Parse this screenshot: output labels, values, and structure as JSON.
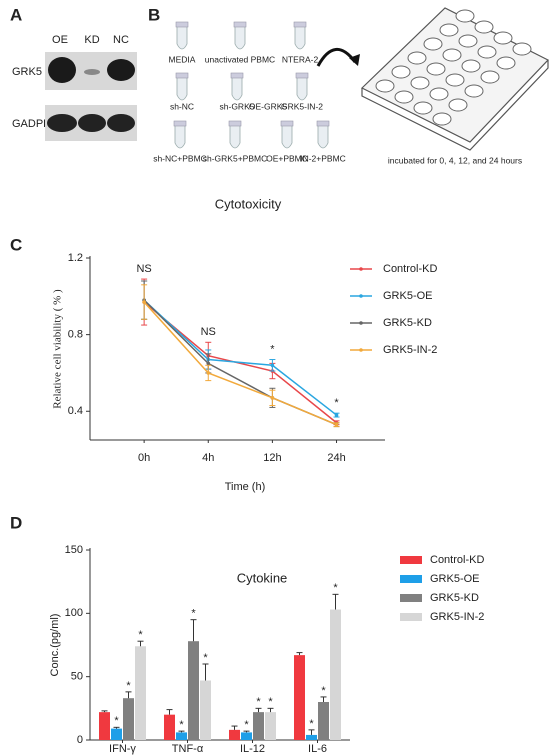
{
  "panel_a": {
    "letter": "A",
    "lanes": [
      "OE",
      "KD",
      "NC"
    ],
    "rows": [
      "GRK5",
      "GADPH"
    ]
  },
  "panel_b": {
    "letter": "B",
    "tubes": [
      [
        "MEDIA",
        "unactivated PBMC",
        "NTERA-2"
      ],
      [
        "sh-NC",
        "sh-GRK5",
        "OE-GRK5",
        "GRK5-IN-2"
      ],
      [
        "sh-NC+PBMC",
        "sh-GRK5+PBMC",
        "OE+PBMC",
        "IN-2+PBMC"
      ]
    ],
    "caption": "incubated for 0, 4, 12, and 24 hours"
  },
  "chart_data": [
    {
      "type": "line",
      "panel": "C",
      "title": "Cytotoxicity",
      "xlabel": "Time (h)",
      "ylabel": "Relative cell viability ( % )",
      "categories": [
        "0h",
        "4h",
        "12h",
        "24h"
      ],
      "annotations": [
        "NS",
        "NS",
        "*",
        "*"
      ],
      "ylim": [
        0.25,
        1.2
      ],
      "yticks": [
        0.4,
        0.8,
        1.2
      ],
      "grid": false,
      "legend": "right",
      "series": [
        {
          "name": "Control-KD",
          "color": "#e8474a",
          "values": [
            0.97,
            0.69,
            0.61,
            0.34
          ],
          "errors": [
            0.12,
            0.07,
            0.04,
            0.01
          ]
        },
        {
          "name": "GRK5-OE",
          "color": "#2aa6e0",
          "values": [
            0.98,
            0.67,
            0.64,
            0.38
          ],
          "errors": [
            0.1,
            0.05,
            0.03,
            0.01
          ]
        },
        {
          "name": "GRK5-KD",
          "color": "#666666",
          "values": [
            0.98,
            0.65,
            0.47,
            0.33
          ],
          "errors": [
            0.1,
            0.05,
            0.05,
            0.01
          ]
        },
        {
          "name": "GRK5-IN-2",
          "color": "#f2a93b",
          "values": [
            0.97,
            0.6,
            0.47,
            0.33
          ],
          "errors": [
            0.09,
            0.04,
            0.04,
            0.01
          ]
        }
      ]
    },
    {
      "type": "bar",
      "panel": "D",
      "title": "Cytokine",
      "ylabel": "Conc.(pg/ml)",
      "categories": [
        "IFN-γ",
        "TNF-α",
        "IL-12",
        "IL-6"
      ],
      "ylim": [
        0,
        150
      ],
      "yticks": [
        0,
        50,
        100,
        150
      ],
      "grid": false,
      "legend": "right",
      "series": [
        {
          "name": "Control-KD",
          "color": "#f0393f",
          "values": [
            22,
            20,
            8,
            67
          ],
          "errors": [
            1,
            4,
            3,
            2
          ]
        },
        {
          "name": "GRK5-OE",
          "color": "#1e9fe8",
          "values": [
            9,
            6,
            6,
            4
          ],
          "errors": [
            1,
            1,
            1,
            4
          ],
          "annotations": [
            "*",
            "*",
            "*",
            "*"
          ]
        },
        {
          "name": "GRK5-KD",
          "color": "#808080",
          "values": [
            33,
            78,
            22,
            30
          ],
          "errors": [
            5,
            17,
            3,
            4
          ],
          "annotations": [
            "*",
            "*",
            "*",
            "*"
          ]
        },
        {
          "name": "GRK5-IN-2",
          "color": "#d6d6d6",
          "values": [
            74,
            47,
            22,
            103
          ],
          "errors": [
            4,
            13,
            3,
            12
          ],
          "annotations": [
            "*",
            "*",
            "*",
            "*"
          ]
        }
      ]
    }
  ]
}
